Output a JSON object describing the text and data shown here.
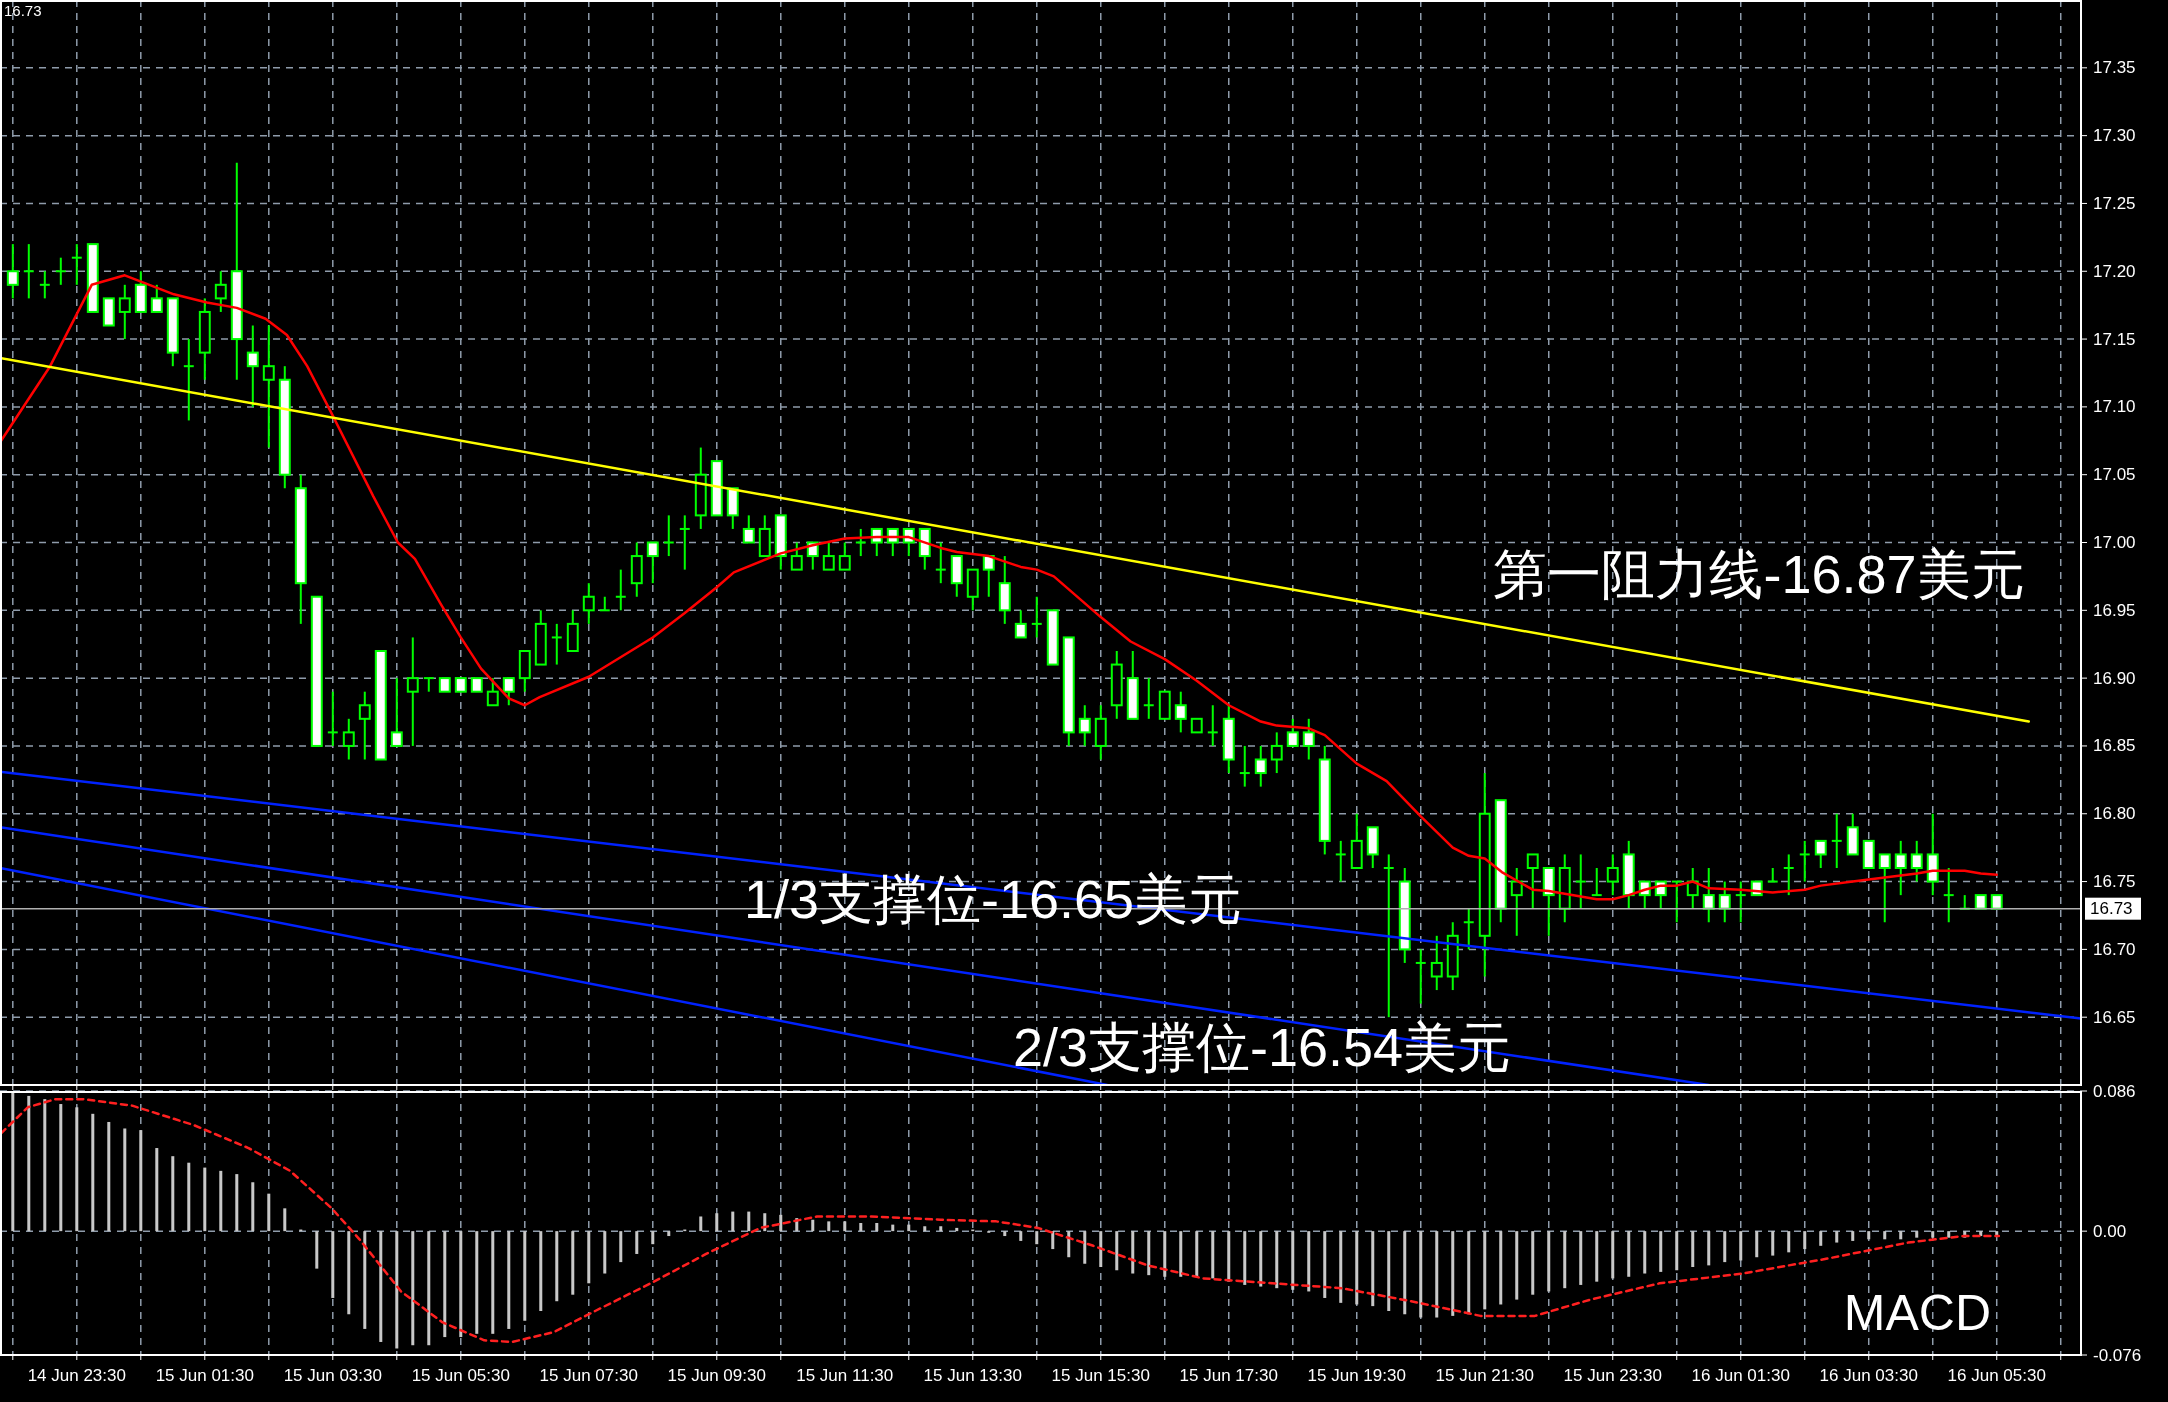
{
  "chart_data": [
    {
      "type": "candlestick",
      "color": "#00ff00",
      "x": [
        "--06-14T22:30",
        "--06-14T22:45",
        "--06-14T23:00",
        "--06-14T23:15",
        "--06-14T23:30",
        "--06-14T23:45",
        "--06-15T00:00",
        "--06-15T00:15",
        "--06-15T00:30",
        "--06-15T00:45",
        "--06-15T01:00",
        "--06-15T01:15",
        "--06-15T01:30",
        "--06-15T01:45",
        "--06-15T02:00",
        "--06-15T02:15",
        "--06-15T02:30",
        "--06-15T02:45",
        "--06-15T03:00",
        "--06-15T03:15",
        "--06-15T03:30",
        "--06-15T03:45",
        "--06-15T04:00",
        "--06-15T04:15",
        "--06-15T04:30",
        "--06-15T04:45",
        "--06-15T05:00",
        "--06-15T05:15",
        "--06-15T05:30",
        "--06-15T05:45",
        "--06-15T06:00",
        "--06-15T06:15",
        "--06-15T06:30",
        "--06-15T06:45",
        "--06-15T07:00",
        "--06-15T07:15",
        "--06-15T07:30",
        "--06-15T07:45",
        "--06-15T08:00",
        "--06-15T08:15",
        "--06-15T08:30",
        "--06-15T08:45",
        "--06-15T09:00",
        "--06-15T09:15",
        "--06-15T09:30",
        "--06-15T09:45",
        "--06-15T10:00",
        "--06-15T10:15",
        "--06-15T10:30",
        "--06-15T10:45",
        "--06-15T11:00",
        "--06-15T11:15",
        "--06-15T11:30",
        "--06-15T11:45",
        "--06-15T12:00",
        "--06-15T12:15",
        "--06-15T12:30",
        "--06-15T12:45",
        "--06-15T13:00",
        "--06-15T13:15",
        "--06-15T13:30",
        "--06-15T13:45",
        "--06-15T14:00",
        "--06-15T14:15",
        "--06-15T14:30",
        "--06-15T14:45",
        "--06-15T15:00",
        "--06-15T15:15",
        "--06-15T15:30",
        "--06-15T15:45",
        "--06-15T16:00",
        "--06-15T16:15",
        "--06-15T16:30",
        "--06-15T16:45",
        "--06-15T17:00",
        "--06-15T17:15",
        "--06-15T17:30",
        "--06-15T17:45",
        "--06-15T18:00",
        "--06-15T18:15",
        "--06-15T18:30",
        "--06-15T18:45",
        "--06-15T19:00",
        "--06-15T19:15",
        "--06-15T19:30",
        "--06-15T19:45",
        "--06-15T20:00",
        "--06-15T20:15",
        "--06-15T20:30",
        "--06-15T20:45",
        "--06-15T21:00",
        "--06-15T21:15",
        "--06-15T21:30",
        "--06-15T21:45",
        "--06-15T22:00",
        "--06-15T22:15",
        "--06-15T22:30",
        "--06-15T22:45",
        "--06-15T23:00",
        "--06-15T23:15",
        "--06-15T23:30",
        "--06-15T23:45",
        "--06-16T00:00",
        "--06-16T00:15",
        "--06-16T00:30",
        "--06-16T00:45",
        "--06-16T01:00",
        "--06-16T01:15",
        "--06-16T01:30",
        "--06-16T01:45",
        "--06-16T02:00",
        "--06-16T02:15",
        "--06-16T02:30",
        "--06-16T02:45",
        "--06-16T03:00",
        "--06-16T03:15",
        "--06-16T03:30",
        "--06-16T03:45",
        "--06-16T04:00",
        "--06-16T04:15",
        "--06-16T04:30",
        "--06-16T04:45",
        "--06-16T05:00",
        "--06-16T05:15",
        "--06-16T05:30"
      ],
      "ohlc": [
        [
          17.2,
          17.22,
          17.18,
          17.19
        ],
        [
          17.2,
          17.22,
          17.18,
          17.2
        ],
        [
          17.19,
          17.2,
          17.18,
          17.19
        ],
        [
          17.2,
          17.21,
          17.19,
          17.2
        ],
        [
          17.21,
          17.22,
          17.19,
          17.21
        ],
        [
          17.22,
          17.22,
          17.17,
          17.17
        ],
        [
          17.18,
          17.18,
          17.16,
          17.16
        ],
        [
          17.17,
          17.19,
          17.15,
          17.18
        ],
        [
          17.19,
          17.2,
          17.17,
          17.17
        ],
        [
          17.18,
          17.19,
          17.17,
          17.17
        ],
        [
          17.18,
          17.18,
          17.13,
          17.14
        ],
        [
          17.13,
          17.15,
          17.09,
          17.13
        ],
        [
          17.14,
          17.18,
          17.12,
          17.17
        ],
        [
          17.18,
          17.2,
          17.17,
          17.19
        ],
        [
          17.2,
          17.28,
          17.12,
          17.15
        ],
        [
          17.14,
          17.16,
          17.1,
          17.13
        ],
        [
          17.12,
          17.16,
          17.07,
          17.13
        ],
        [
          17.12,
          17.13,
          17.04,
          17.05
        ],
        [
          17.04,
          17.05,
          16.94,
          16.97
        ],
        [
          16.96,
          16.96,
          16.85,
          16.85
        ],
        [
          16.86,
          16.89,
          16.85,
          16.86
        ],
        [
          16.85,
          16.87,
          16.84,
          16.86
        ],
        [
          16.87,
          16.89,
          16.84,
          16.88
        ],
        [
          16.92,
          16.92,
          16.84,
          16.84
        ],
        [
          16.86,
          16.9,
          16.85,
          16.85
        ],
        [
          16.89,
          16.93,
          16.85,
          16.9
        ],
        [
          16.9,
          16.9,
          16.89,
          16.9
        ],
        [
          16.9,
          16.9,
          16.89,
          16.89
        ],
        [
          16.9,
          16.9,
          16.89,
          16.89
        ],
        [
          16.9,
          16.9,
          16.89,
          16.89
        ],
        [
          16.88,
          16.9,
          16.88,
          16.89
        ],
        [
          16.9,
          16.9,
          16.88,
          16.89
        ],
        [
          16.9,
          16.92,
          16.89,
          16.92
        ],
        [
          16.91,
          16.95,
          16.91,
          16.94
        ],
        [
          16.93,
          16.94,
          16.91,
          16.93
        ],
        [
          16.92,
          16.95,
          16.92,
          16.94
        ],
        [
          16.95,
          16.97,
          16.94,
          16.96
        ],
        [
          16.95,
          16.96,
          16.95,
          16.95
        ],
        [
          16.96,
          16.98,
          16.95,
          16.96
        ],
        [
          16.97,
          17.0,
          16.96,
          16.99
        ],
        [
          17.0,
          17.0,
          16.97,
          16.99
        ],
        [
          17.0,
          17.02,
          16.99,
          17.0
        ],
        [
          17.01,
          17.02,
          16.98,
          17.01
        ],
        [
          17.02,
          17.07,
          17.01,
          17.05
        ],
        [
          17.06,
          17.06,
          17.02,
          17.02
        ],
        [
          17.04,
          17.04,
          17.01,
          17.02
        ],
        [
          17.01,
          17.02,
          17.0,
          17.0
        ],
        [
          16.99,
          17.02,
          16.99,
          17.01
        ],
        [
          17.02,
          17.02,
          16.98,
          16.99
        ],
        [
          16.98,
          17.0,
          16.98,
          16.99
        ],
        [
          17.0,
          17.0,
          16.98,
          16.99
        ],
        [
          16.98,
          17.0,
          16.98,
          16.99
        ],
        [
          16.98,
          17.0,
          16.98,
          16.99
        ],
        [
          17.0,
          17.01,
          16.99,
          17.0
        ],
        [
          17.01,
          17.01,
          16.99,
          17.0
        ],
        [
          17.01,
          17.01,
          16.99,
          17.0
        ],
        [
          17.01,
          17.01,
          16.99,
          17.0
        ],
        [
          17.01,
          17.01,
          16.98,
          16.99
        ],
        [
          16.98,
          17.0,
          16.97,
          16.98
        ],
        [
          16.99,
          16.99,
          16.96,
          16.97
        ],
        [
          16.96,
          16.98,
          16.95,
          16.98
        ],
        [
          16.99,
          16.99,
          16.96,
          16.98
        ],
        [
          16.97,
          16.99,
          16.94,
          16.95
        ],
        [
          16.94,
          16.95,
          16.93,
          16.93
        ],
        [
          16.94,
          16.96,
          16.93,
          16.94
        ],
        [
          16.95,
          16.95,
          16.91,
          16.91
        ],
        [
          16.93,
          16.93,
          16.85,
          16.86
        ],
        [
          16.87,
          16.88,
          16.85,
          16.86
        ],
        [
          16.85,
          16.88,
          16.84,
          16.87
        ],
        [
          16.88,
          16.92,
          16.87,
          16.91
        ],
        [
          16.9,
          16.92,
          16.87,
          16.87
        ],
        [
          16.88,
          16.9,
          16.87,
          16.88
        ],
        [
          16.87,
          16.89,
          16.87,
          16.89
        ],
        [
          16.88,
          16.89,
          16.86,
          16.87
        ],
        [
          16.86,
          16.87,
          16.86,
          16.87
        ],
        [
          16.86,
          16.88,
          16.85,
          16.86
        ],
        [
          16.87,
          16.88,
          16.83,
          16.84
        ],
        [
          16.83,
          16.85,
          16.82,
          16.83
        ],
        [
          16.84,
          16.85,
          16.82,
          16.83
        ],
        [
          16.84,
          16.86,
          16.83,
          16.85
        ],
        [
          16.86,
          16.87,
          16.85,
          16.85
        ],
        [
          16.86,
          16.87,
          16.84,
          16.85
        ],
        [
          16.84,
          16.85,
          16.77,
          16.78
        ],
        [
          16.77,
          16.78,
          16.75,
          16.77
        ],
        [
          16.76,
          16.8,
          16.76,
          16.78
        ],
        [
          16.79,
          16.79,
          16.76,
          16.77
        ],
        [
          16.76,
          16.77,
          16.65,
          16.76
        ],
        [
          16.75,
          16.76,
          16.69,
          16.7
        ],
        [
          16.69,
          16.7,
          16.66,
          16.69
        ],
        [
          16.68,
          16.71,
          16.67,
          16.69
        ],
        [
          16.68,
          16.72,
          16.67,
          16.71
        ],
        [
          16.72,
          16.73,
          16.7,
          16.72
        ],
        [
          16.71,
          16.83,
          16.68,
          16.8
        ],
        [
          16.81,
          16.81,
          16.72,
          16.73
        ],
        [
          16.74,
          16.76,
          16.71,
          16.75
        ],
        [
          16.76,
          16.77,
          16.73,
          16.77
        ],
        [
          16.76,
          16.76,
          16.71,
          16.74
        ],
        [
          16.73,
          16.77,
          16.72,
          16.76
        ],
        [
          16.75,
          16.77,
          16.73,
          16.75
        ],
        [
          16.74,
          16.76,
          16.74,
          16.74
        ],
        [
          16.75,
          16.77,
          16.74,
          16.76
        ],
        [
          16.77,
          16.78,
          16.73,
          16.74
        ],
        [
          16.75,
          16.75,
          16.73,
          16.74
        ],
        [
          16.75,
          16.75,
          16.73,
          16.74
        ],
        [
          16.75,
          16.75,
          16.72,
          16.75
        ],
        [
          16.74,
          16.76,
          16.73,
          16.75
        ],
        [
          16.74,
          16.76,
          16.72,
          16.73
        ],
        [
          16.74,
          16.75,
          16.72,
          16.73
        ],
        [
          16.74,
          16.75,
          16.72,
          16.74
        ],
        [
          16.75,
          16.75,
          16.74,
          16.74
        ],
        [
          16.75,
          16.76,
          16.75,
          16.75
        ],
        [
          16.76,
          16.77,
          16.74,
          16.76
        ],
        [
          16.77,
          16.78,
          16.75,
          16.77
        ],
        [
          16.78,
          16.78,
          16.76,
          16.77
        ],
        [
          16.78,
          16.8,
          16.76,
          16.78
        ],
        [
          16.79,
          16.8,
          16.77,
          16.77
        ],
        [
          16.78,
          16.78,
          16.76,
          16.76
        ],
        [
          16.77,
          16.77,
          16.72,
          16.76
        ],
        [
          16.77,
          16.78,
          16.74,
          16.76
        ],
        [
          16.77,
          16.78,
          16.75,
          16.76
        ],
        [
          16.77,
          16.8,
          16.74,
          16.75
        ],
        [
          16.74,
          16.76,
          16.72,
          16.74
        ],
        [
          16.73,
          16.74,
          16.73,
          16.73
        ],
        [
          16.74,
          16.74,
          16.73,
          16.73
        ],
        [
          16.74,
          16.74,
          16.73,
          16.73
        ]
      ],
      "series": [
        {
          "type": "line",
          "color": "#ff0000",
          "x": [
            "--06-14T22:19",
            "--06-14T23:05",
            "--06-14T23:44",
            "--06-15T00:15",
            "--06-15T01:01",
            "--06-15T01:32",
            "--06-15T02:00",
            "--06-15T02:27",
            "--06-15T02:47",
            "--06-15T03:06",
            "--06-15T03:29",
            "--06-15T04:08",
            "--06-15T04:31",
            "--06-15T04:47",
            "--06-15T05:11",
            "--06-15T05:30",
            "--06-15T05:49",
            "--06-15T06:15",
            "--06-15T06:30",
            "--06-15T06:44",
            "--06-15T07:30",
            "--06-15T08:30",
            "--06-15T09:00",
            "--06-15T09:30",
            "--06-15T09:46",
            "--06-15T10:30",
            "--06-15T11:00",
            "--06-15T11:30",
            "--06-15T12:00",
            "--06-15T12:30",
            "--06-15T13:00",
            "--06-15T13:15",
            "--06-15T13:45",
            "--06-15T14:15",
            "--06-15T14:30",
            "--06-15T14:46",
            "--06-15T15:30",
            "--06-15T15:58",
            "--06-15T16:30",
            "--06-15T17:00",
            "--06-15T17:30",
            "--06-15T18:00",
            "--06-15T18:15",
            "--06-15T18:45",
            "--06-15T19:00",
            "--06-15T19:30",
            "--06-15T19:58",
            "--06-15T20:30",
            "--06-15T21:00",
            "--06-15T21:15",
            "--06-15T21:30",
            "--06-15T21:46",
            "--06-15T22:15",
            "--06-15T22:30",
            "--06-15T23:00",
            "--06-15T23:15",
            "--06-15T23:30",
            "--06-15T23:45",
            "--06-16T00:00",
            "--06-16T00:15",
            "--06-16T00:30",
            "--06-16T00:45",
            "--06-16T01:00",
            "--06-16T01:30",
            "--06-16T02:00",
            "--06-16T02:30",
            "--06-16T02:45",
            "--06-16T03:15",
            "--06-16T03:45",
            "--06-16T04:15",
            "--06-16T04:30",
            "--06-16T05:00",
            "--06-16T05:15",
            "--06-16T05:30"
          ],
          "values": [
            17.075,
            17.13,
            17.19,
            17.197,
            17.183,
            17.177,
            17.173,
            17.165,
            17.153,
            17.13,
            17.095,
            17.034,
            17.0,
            16.988,
            16.955,
            16.93,
            16.907,
            16.885,
            16.88,
            16.886,
            16.901,
            16.93,
            16.948,
            16.967,
            16.978,
            16.992,
            16.998,
            17.003,
            17.004,
            17.004,
            16.996,
            16.993,
            16.99,
            16.982,
            16.98,
            16.975,
            16.945,
            16.927,
            16.914,
            16.898,
            16.88,
            16.868,
            16.865,
            16.863,
            16.858,
            16.837,
            16.824,
            16.798,
            16.775,
            16.769,
            16.767,
            16.757,
            16.744,
            16.743,
            16.739,
            16.737,
            16.737,
            16.74,
            16.744,
            16.747,
            16.747,
            16.75,
            16.745,
            16.744,
            16.742,
            16.744,
            16.747,
            16.75,
            16.753,
            16.756,
            16.758,
            16.758,
            16.756,
            16.755
          ]
        },
        {
          "type": "line",
          "color": "#ffff00",
          "x": [
            "--06-14T22:18",
            "--06-16T06:00"
          ],
          "values": [
            17.136,
            16.868
          ]
        },
        {
          "type": "line",
          "color": "#0022ff",
          "x": [
            "--06-14T22:18",
            "--06-16T06:49"
          ],
          "values": [
            16.831,
            16.649
          ]
        },
        {
          "type": "line",
          "color": "#0022ff",
          "x": [
            "--06-14T22:18",
            "--06-16T01:00"
          ],
          "values": [
            16.79,
            16.6
          ]
        },
        {
          "type": "line",
          "color": "#0022ff",
          "x": [
            "--06-14T22:18",
            "--06-15T15:36"
          ],
          "values": [
            16.76,
            16.6
          ]
        }
      ],
      "xlim": [
        "--06-14T22:18",
        "--06-16T06:49"
      ],
      "ylim": [
        16.6,
        17.4
      ],
      "xticks": [
        {
          "value": "--06-14T22:30",
          "label": null
        },
        {
          "value": "--06-14T23:30",
          "label": null
        },
        {
          "value": "--06-15T00:30",
          "label": null
        },
        {
          "value": "--06-15T01:30",
          "label": null
        },
        {
          "value": "--06-15T02:30",
          "label": null
        },
        {
          "value": "--06-15T03:30",
          "label": null
        },
        {
          "value": "--06-15T04:30",
          "label": null
        },
        {
          "value": "--06-15T05:30",
          "label": null
        },
        {
          "value": "--06-15T06:30",
          "label": null
        },
        {
          "value": "--06-15T07:30",
          "label": null
        },
        {
          "value": "--06-15T08:30",
          "label": null
        },
        {
          "value": "--06-15T09:30",
          "label": null
        },
        {
          "value": "--06-15T10:30",
          "label": null
        },
        {
          "value": "--06-15T11:30",
          "label": null
        },
        {
          "value": "--06-15T12:30",
          "label": null
        },
        {
          "value": "--06-15T13:30",
          "label": null
        },
        {
          "value": "--06-15T14:30",
          "label": null
        },
        {
          "value": "--06-15T15:30",
          "label": null
        },
        {
          "value": "--06-15T16:30",
          "label": null
        },
        {
          "value": "--06-15T17:30",
          "label": null
        },
        {
          "value": "--06-15T18:30",
          "label": null
        },
        {
          "value": "--06-15T19:30",
          "label": null
        },
        {
          "value": "--06-15T20:30",
          "label": null
        },
        {
          "value": "--06-15T21:30",
          "label": null
        },
        {
          "value": "--06-15T22:30",
          "label": null
        },
        {
          "value": "--06-15T23:30",
          "label": null
        },
        {
          "value": "--06-16T00:30",
          "label": null
        },
        {
          "value": "--06-16T01:30",
          "label": null
        },
        {
          "value": "--06-16T02:30",
          "label": null
        },
        {
          "value": "--06-16T03:30",
          "label": null
        },
        {
          "value": "--06-16T04:30",
          "label": null
        },
        {
          "value": "--06-16T05:30",
          "label": null
        },
        {
          "value": "--06-16T06:30",
          "label": null
        }
      ],
      "yticks": [
        16.65,
        {
          "value": 16.7,
          "label": "16.70"
        },
        16.75,
        {
          "value": 16.8,
          "label": "16.80"
        },
        16.85,
        {
          "value": 16.9,
          "label": "16.90"
        },
        16.95,
        {
          "value": 17,
          "label": "17.00"
        },
        17.05,
        {
          "value": 17.1,
          "label": "17.10"
        },
        17.15,
        {
          "value": 17.2,
          "label": "17.20"
        },
        17.25,
        {
          "value": 17.3,
          "label": "17.30"
        },
        17.35
      ],
      "grid": true,
      "tick_labels": "y",
      "ref_lines": [
        {
          "axis": "y",
          "value": 16.73,
          "label": "16.73",
          "color": "#b0b0b0"
        }
      ],
      "annotations": [
        "16.73",
        "第一阻力线-16.87美元",
        "1/3支撑位-16.65美元",
        "2/3支撑位-16.54美元"
      ]
    },
    {
      "type": "bar",
      "x": [
        "--06-14T22:30",
        "--06-14T22:45",
        "--06-14T23:00",
        "--06-14T23:15",
        "--06-14T23:30",
        "--06-14T23:45",
        "--06-15T00:00",
        "--06-15T00:15",
        "--06-15T00:30",
        "--06-15T00:45",
        "--06-15T01:00",
        "--06-15T01:15",
        "--06-15T01:30",
        "--06-15T01:45",
        "--06-15T02:00",
        "--06-15T02:15",
        "--06-15T02:30",
        "--06-15T02:45",
        "--06-15T03:00",
        "--06-15T03:15",
        "--06-15T03:30",
        "--06-15T03:45",
        "--06-15T04:00",
        "--06-15T04:15",
        "--06-15T04:30",
        "--06-15T04:45",
        "--06-15T05:00",
        "--06-15T05:15",
        "--06-15T05:30",
        "--06-15T05:45",
        "--06-15T06:00",
        "--06-15T06:15",
        "--06-15T06:30",
        "--06-15T06:45",
        "--06-15T07:00",
        "--06-15T07:15",
        "--06-15T07:30",
        "--06-15T07:45",
        "--06-15T08:00",
        "--06-15T08:15",
        "--06-15T08:30",
        "--06-15T08:45",
        "--06-15T09:00",
        "--06-15T09:15",
        "--06-15T09:30",
        "--06-15T09:45",
        "--06-15T10:00",
        "--06-15T10:15",
        "--06-15T10:30",
        "--06-15T10:45",
        "--06-15T11:00",
        "--06-15T11:15",
        "--06-15T11:30",
        "--06-15T11:45",
        "--06-15T12:00",
        "--06-15T12:15",
        "--06-15T12:30",
        "--06-15T12:45",
        "--06-15T13:00",
        "--06-15T13:15",
        "--06-15T13:30",
        "--06-15T13:45",
        "--06-15T14:00",
        "--06-15T14:15",
        "--06-15T14:30",
        "--06-15T14:45",
        "--06-15T15:00",
        "--06-15T15:15",
        "--06-15T15:30",
        "--06-15T15:45",
        "--06-15T16:00",
        "--06-15T16:15",
        "--06-15T16:30",
        "--06-15T16:45",
        "--06-15T17:00",
        "--06-15T17:15",
        "--06-15T17:30",
        "--06-15T17:45",
        "--06-15T18:00",
        "--06-15T18:15",
        "--06-15T18:30",
        "--06-15T18:45",
        "--06-15T19:00",
        "--06-15T19:15",
        "--06-15T19:30",
        "--06-15T19:45",
        "--06-15T20:00",
        "--06-15T20:15",
        "--06-15T20:30",
        "--06-15T20:45",
        "--06-15T21:00",
        "--06-15T21:15",
        "--06-15T21:30",
        "--06-15T21:45",
        "--06-15T22:00",
        "--06-15T22:15",
        "--06-15T22:30",
        "--06-15T22:45",
        "--06-15T23:00",
        "--06-15T23:15",
        "--06-15T23:30",
        "--06-15T23:45",
        "--06-16T00:00",
        "--06-16T00:15",
        "--06-16T00:30",
        "--06-16T00:45",
        "--06-16T01:00",
        "--06-16T01:15",
        "--06-16T01:30",
        "--06-16T01:45",
        "--06-16T02:00",
        "--06-16T02:15",
        "--06-16T02:30",
        "--06-16T02:45",
        "--06-16T03:00",
        "--06-16T03:15",
        "--06-16T03:30",
        "--06-16T03:45",
        "--06-16T04:00",
        "--06-16T04:15",
        "--06-16T04:30",
        "--06-16T04:45",
        "--06-16T05:00",
        "--06-16T05:15",
        "--06-16T05:30"
      ],
      "series": [
        {
          "type": "bar",
          "color": "#c8c8c8",
          "values": [
            0.085,
            0.083,
            0.081,
            0.078,
            0.076,
            0.072,
            0.067,
            0.063,
            0.062,
            0.051,
            0.046,
            0.042,
            0.039,
            0.037,
            0.035,
            0.03,
            0.023,
            0.014,
            0.001,
            -0.023,
            -0.041,
            -0.051,
            -0.06,
            -0.068,
            -0.072,
            -0.07,
            -0.07,
            -0.065,
            -0.065,
            -0.063,
            -0.063,
            -0.06,
            -0.055,
            -0.049,
            -0.043,
            -0.039,
            -0.032,
            -0.026,
            -0.019,
            -0.014,
            -0.008,
            -0.003,
            0.001,
            0.009,
            0.011,
            0.012,
            0.012,
            0.011,
            0.01,
            0.008,
            0.007,
            0.006,
            0.006,
            0.005,
            0.005,
            0.004,
            0.004,
            0.003,
            0.003,
            0.002,
            0.001,
            -0.001,
            -0.003,
            -0.006,
            -0.008,
            -0.011,
            -0.016,
            -0.02,
            -0.022,
            -0.024,
            -0.026,
            -0.027,
            -0.028,
            -0.028,
            -0.028,
            -0.029,
            -0.031,
            -0.033,
            -0.034,
            -0.035,
            -0.036,
            -0.037,
            -0.041,
            -0.044,
            -0.045,
            -0.046,
            -0.049,
            -0.051,
            -0.053,
            -0.053,
            -0.052,
            -0.051,
            -0.048,
            -0.045,
            -0.042,
            -0.039,
            -0.037,
            -0.035,
            -0.033,
            -0.031,
            -0.029,
            -0.028,
            -0.026,
            -0.025,
            -0.024,
            -0.022,
            -0.021,
            -0.019,
            -0.018,
            -0.016,
            -0.015,
            -0.013,
            -0.011,
            -0.009,
            -0.007,
            -0.006,
            -0.005,
            -0.005,
            -0.005,
            -0.004,
            -0.004,
            -0.004,
            -0.004,
            -0.003,
            -0.003
          ]
        },
        {
          "type": "line",
          "color": "#ff2020",
          "line_style": "dashed",
          "x": [
            "--06-14T22:19",
            "--06-14T22:44",
            "--06-14T23:10",
            "--06-14T23:36",
            "--06-15T00:22",
            "--06-15T01:20",
            "--06-15T02:11",
            "--06-15T02:50",
            "--06-15T03:29",
            "--06-15T03:55",
            "--06-15T04:34",
            "--06-15T05:13",
            "--06-15T05:52",
            "--06-15T06:18",
            "--06-15T06:57",
            "--06-15T07:36",
            "--06-15T08:28",
            "--06-15T09:20",
            "--06-15T10:11",
            "--06-15T11:04",
            "--06-15T11:55",
            "--06-15T13:00",
            "--06-15T13:52",
            "--06-15T14:31",
            "--06-15T15:23",
            "--06-15T16:14",
            "--06-15T17:06",
            "--06-15T18:11",
            "--06-15T19:16",
            "--06-15T20:21",
            "--06-15T21:26",
            "--06-15T22:17",
            "--06-15T23:09",
            "--06-16T00:14",
            "--06-16T01:32",
            "--06-16T02:50",
            "--06-16T04:07",
            "--06-16T04:59",
            "--06-16T05:32"
          ],
          "values": [
            0.06,
            0.076,
            0.081,
            0.081,
            0.077,
            0.065,
            0.051,
            0.037,
            0.014,
            -0.005,
            -0.037,
            -0.056,
            -0.067,
            -0.068,
            -0.062,
            -0.049,
            -0.032,
            -0.014,
            0.002,
            0.009,
            0.009,
            0.007,
            0.006,
            0.002,
            -0.009,
            -0.021,
            -0.029,
            -0.032,
            -0.035,
            -0.043,
            -0.052,
            -0.052,
            -0.042,
            -0.032,
            -0.026,
            -0.017,
            -0.007,
            -0.003,
            -0.003
          ]
        }
      ],
      "xlim": [
        "--06-14T22:18",
        "--06-16T06:49"
      ],
      "ylim": [
        -0.076,
        0.086
      ],
      "xticks": [
        {
          "value": "--06-14T22:30",
          "label": null
        },
        {
          "value": "--06-14T23:30",
          "label": "14 Jun 23:30"
        },
        {
          "value": "--06-15T00:30",
          "label": null
        },
        {
          "value": "--06-15T01:30",
          "label": "15 Jun 01:30"
        },
        {
          "value": "--06-15T02:30",
          "label": null
        },
        {
          "value": "--06-15T03:30",
          "label": "15 Jun 03:30"
        },
        {
          "value": "--06-15T04:30",
          "label": null
        },
        {
          "value": "--06-15T05:30",
          "label": "15 Jun 05:30"
        },
        {
          "value": "--06-15T06:30",
          "label": null
        },
        {
          "value": "--06-15T07:30",
          "label": "15 Jun 07:30"
        },
        {
          "value": "--06-15T08:30",
          "label": null
        },
        {
          "value": "--06-15T09:30",
          "label": "15 Jun 09:30"
        },
        {
          "value": "--06-15T10:30",
          "label": null
        },
        {
          "value": "--06-15T11:30",
          "label": "15 Jun 11:30"
        },
        {
          "value": "--06-15T12:30",
          "label": null
        },
        {
          "value": "--06-15T13:30",
          "label": "15 Jun 13:30"
        },
        {
          "value": "--06-15T14:30",
          "label": null
        },
        {
          "value": "--06-15T15:30",
          "label": "15 Jun 15:30"
        },
        {
          "value": "--06-15T16:30",
          "label": null
        },
        {
          "value": "--06-15T17:30",
          "label": "15 Jun 17:30"
        },
        {
          "value": "--06-15T18:30",
          "label": null
        },
        {
          "value": "--06-15T19:30",
          "label": "15 Jun 19:30"
        },
        {
          "value": "--06-15T20:30",
          "label": null
        },
        {
          "value": "--06-15T21:30",
          "label": "15 Jun 21:30"
        },
        {
          "value": "--06-15T22:30",
          "label": null
        },
        {
          "value": "--06-15T23:30",
          "label": "15 Jun 23:30"
        },
        {
          "value": "--06-16T00:30",
          "label": null
        },
        {
          "value": "--06-16T01:30",
          "label": "16 Jun 01:30"
        },
        {
          "value": "--06-16T02:30",
          "label": null
        },
        {
          "value": "--06-16T03:30",
          "label": "16 Jun 03:30"
        },
        {
          "value": "--06-16T04:30",
          "label": null
        },
        {
          "value": "--06-16T05:30",
          "label": "16 Jun 05:30"
        },
        {
          "value": "--06-16T06:30",
          "label": null
        }
      ],
      "yticks": [
        0.086,
        {
          "value": 0,
          "label": "0.00"
        },
        -0.076
      ],
      "grid": true,
      "annotations": [
        "MACD"
      ]
    }
  ]
}
